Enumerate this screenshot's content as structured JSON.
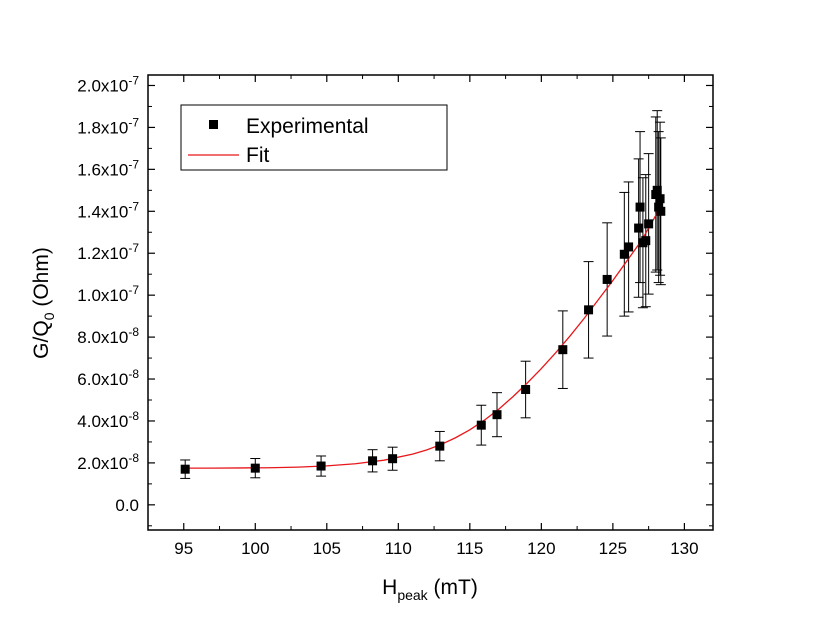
{
  "chart_data": {
    "type": "scatter",
    "xlabel_main": "H",
    "xlabel_sub": "peak",
    "xlabel_tail": " (mT)",
    "ylabel_main": "G/Q",
    "ylabel_sub": "0",
    "ylabel_tail": " (Ohm)",
    "xlim": [
      92.5,
      132
    ],
    "ylim": [
      -1.2e-08,
      2.05e-07
    ],
    "x_ticks": [
      95,
      100,
      105,
      110,
      115,
      120,
      125,
      130
    ],
    "x_tick_labels": [
      "95",
      "100",
      "105",
      "110",
      "115",
      "120",
      "125",
      "130"
    ],
    "y_ticks": [
      0,
      2e-08,
      4e-08,
      6e-08,
      8e-08,
      1e-07,
      1.2e-07,
      1.4e-07,
      1.6e-07,
      1.8e-07,
      2e-07
    ],
    "y_tick_labels": [
      "0.0",
      "2.0x10-8",
      "4.0x10-8",
      "6.0x10-8",
      "8.0x10-8",
      "1.0x10-7",
      "1.2x10-7",
      "1.4x10-7",
      "1.6x10-7",
      "1.8x10-7",
      "2.0x10-7"
    ],
    "grid": false,
    "legend_position": "top-left",
    "series": [
      {
        "name": "Experimental",
        "style": "square-markers-with-errorbars",
        "color": "#000000",
        "points": [
          {
            "x": 95.1,
            "y": 1.7e-08,
            "err": 4.4e-09
          },
          {
            "x": 100.0,
            "y": 1.75e-08,
            "err": 4.6e-09
          },
          {
            "x": 104.6,
            "y": 1.85e-08,
            "err": 4.8e-09
          },
          {
            "x": 108.2,
            "y": 2.1e-08,
            "err": 5.3e-09
          },
          {
            "x": 109.6,
            "y": 2.2e-08,
            "err": 5.5e-09
          },
          {
            "x": 112.9,
            "y": 2.8e-08,
            "err": 7e-09
          },
          {
            "x": 115.8,
            "y": 3.8e-08,
            "err": 9.5e-09
          },
          {
            "x": 116.9,
            "y": 4.3e-08,
            "err": 1.05e-08
          },
          {
            "x": 118.9,
            "y": 5.5e-08,
            "err": 1.35e-08
          },
          {
            "x": 121.5,
            "y": 7.4e-08,
            "err": 1.85e-08
          },
          {
            "x": 123.3,
            "y": 9.3e-08,
            "err": 2.3e-08
          },
          {
            "x": 124.6,
            "y": 1.075e-07,
            "err": 2.7e-08
          },
          {
            "x": 125.8,
            "y": 1.195e-07,
            "err": 2.95e-08
          },
          {
            "x": 126.1,
            "y": 1.23e-07,
            "err": 3.1e-08
          },
          {
            "x": 126.8,
            "y": 1.32e-07,
            "err": 3.3e-08
          },
          {
            "x": 126.9,
            "y": 1.42e-07,
            "err": 3.6e-08
          },
          {
            "x": 127.1,
            "y": 1.25e-07,
            "err": 3.1e-08
          },
          {
            "x": 127.3,
            "y": 1.26e-07,
            "err": 3.15e-08
          },
          {
            "x": 127.5,
            "y": 1.34e-07,
            "err": 3.35e-08
          },
          {
            "x": 128.0,
            "y": 1.48e-07,
            "err": 3.7e-08
          },
          {
            "x": 128.1,
            "y": 1.5e-07,
            "err": 3.8e-08
          },
          {
            "x": 128.2,
            "y": 1.42e-07,
            "err": 3.6e-08
          },
          {
            "x": 128.3,
            "y": 1.46e-07,
            "err": 3.65e-08
          },
          {
            "x": 128.35,
            "y": 1.4e-07,
            "err": 3.5e-08
          }
        ]
      },
      {
        "name": "Fit",
        "style": "line",
        "color": "#e8171b",
        "x": [
          95,
          97,
          99,
          101,
          103,
          105,
          107,
          109,
          111,
          112,
          113,
          114,
          115,
          116,
          117,
          118,
          119,
          120,
          121,
          122,
          123,
          124,
          125,
          126,
          127,
          128,
          128.4
        ],
        "y": [
          1.75e-08,
          1.75e-08,
          1.76e-08,
          1.77e-08,
          1.8e-08,
          1.86e-08,
          1.96e-08,
          2.13e-08,
          2.42e-08,
          2.62e-08,
          2.88e-08,
          3.2e-08,
          3.58e-08,
          4.03e-08,
          4.55e-08,
          5.15e-08,
          5.8e-08,
          6.5e-08,
          7.25e-08,
          8.05e-08,
          8.9e-08,
          9.8e-08,
          1.07e-07,
          1.165e-07,
          1.26e-07,
          1.38e-07,
          1.46e-07
        ]
      }
    ]
  }
}
